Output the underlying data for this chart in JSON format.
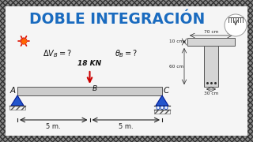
{
  "title": "DOBLE INTEGRACIÓN",
  "title_color": "#1a6bbf",
  "bg_color": "#f5f5f5",
  "beam_color": "#cccccc",
  "beam_edge": "#555555",
  "support_color": "#2255cc",
  "arrow_color": "#cc0000",
  "force_label": "18 KN",
  "span_left": "5 m.",
  "span_right": "5 m.",
  "label_A": "A",
  "label_B": "B",
  "label_C": "C",
  "eq1": "$\\Delta V_B = ?$",
  "eq2": "$\\theta_B = ?$",
  "cross_dims_top_w": "70 cm",
  "cross_dims_top_h": "10 cm",
  "cross_dims_web_h": "60 cm",
  "cross_dims_bot_w": "30 cm",
  "hatch_color": "#888888",
  "dim_color": "#222222"
}
